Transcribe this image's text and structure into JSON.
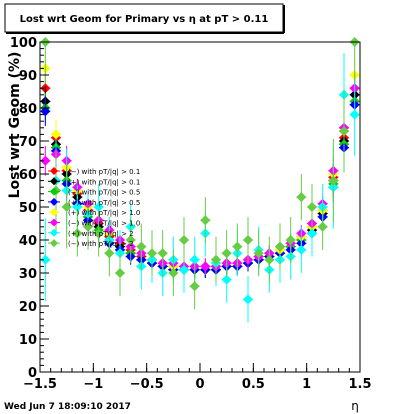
{
  "chart_data": {
    "type": "scatter",
    "title": "Lost wrt Geom for Primary vs   η at pT > 0.11",
    "xlabel": "η",
    "ylabel": "Lost wrt Geom (%)",
    "xlim": [
      -1.5,
      1.5
    ],
    "ylim": [
      0,
      100
    ],
    "x_ticks": [
      "−1.5",
      "−1",
      "−0.5",
      "0",
      "0.5",
      "1",
      "1.5"
    ],
    "y_ticks": [
      "0",
      "10",
      "20",
      "30",
      "40",
      "50",
      "60",
      "70",
      "80",
      "90",
      "100"
    ],
    "grid": false,
    "legend_position": "left-middle",
    "footer": "Wed Jun  7 18:09:10 2017",
    "series": [
      {
        "name": "(−) with pT/|q| > 0.1",
        "color": "#ff0000",
        "x": [
          -1.45,
          -1.35,
          -1.25,
          -1.15,
          -1.05,
          -0.95,
          -0.85,
          -0.75,
          -0.65,
          -0.55,
          -0.45,
          -0.35,
          -0.25,
          -0.15,
          -0.05,
          0.05,
          0.15,
          0.25,
          0.35,
          0.45,
          0.55,
          0.65,
          0.75,
          0.85,
          0.95,
          1.05,
          1.15,
          1.25,
          1.35,
          1.45
        ],
        "y": [
          86,
          71,
          61,
          54,
          49,
          45,
          41,
          39,
          37,
          35,
          34,
          33,
          32,
          32,
          32,
          32,
          32,
          33,
          33,
          34,
          35,
          36,
          37,
          39,
          41,
          44,
          49,
          59,
          71,
          86
        ]
      },
      {
        "name": "(+) with pT/|q| > 0.1",
        "color": "#000000",
        "x": [
          -1.45,
          -1.35,
          -1.25,
          -1.15,
          -1.05,
          -0.95,
          -0.85,
          -0.75,
          -0.65,
          -0.55,
          -0.45,
          -0.35,
          -0.25,
          -0.15,
          -0.05,
          0.05,
          0.15,
          0.25,
          0.35,
          0.45,
          0.55,
          0.65,
          0.75,
          0.85,
          0.95,
          1.05,
          1.15,
          1.25,
          1.35,
          1.45
        ],
        "y": [
          82,
          69,
          60,
          53,
          48,
          44,
          40,
          38,
          36,
          34,
          33,
          32,
          31,
          31,
          31,
          31,
          31,
          32,
          32,
          33,
          34,
          35,
          36,
          38,
          40,
          43,
          48,
          58,
          70,
          84
        ]
      },
      {
        "name": "(−) with pT/|q| > 0.5",
        "color": "#00cc00",
        "x": [
          -1.45,
          -1.35,
          -1.25,
          -1.15,
          -1.05,
          -0.95,
          -0.85,
          -0.75,
          -0.65,
          -0.55,
          -0.45,
          -0.35,
          -0.25,
          -0.15,
          -0.05,
          0.05,
          0.15,
          0.25,
          0.35,
          0.45,
          0.55,
          0.65,
          0.75,
          0.85,
          0.95,
          1.05,
          1.15,
          1.25,
          1.35,
          1.45
        ],
        "y": [
          80,
          68,
          58,
          51,
          47,
          43,
          40,
          37,
          36,
          34,
          33,
          32,
          31,
          31,
          31,
          31,
          31,
          32,
          32,
          33,
          34,
          35,
          36,
          38,
          40,
          42,
          47,
          57,
          69,
          82
        ]
      },
      {
        "name": "(+) with pT/|q| > 0.5",
        "color": "#0000ff",
        "x": [
          -1.45,
          -1.35,
          -1.25,
          -1.15,
          -1.05,
          -0.95,
          -0.85,
          -0.75,
          -0.65,
          -0.55,
          -0.45,
          -0.35,
          -0.25,
          -0.15,
          -0.05,
          0.05,
          0.15,
          0.25,
          0.35,
          0.45,
          0.55,
          0.65,
          0.75,
          0.85,
          0.95,
          1.05,
          1.15,
          1.25,
          1.35,
          1.45
        ],
        "y": [
          79,
          67,
          57,
          51,
          46,
          42,
          39,
          37,
          35,
          34,
          33,
          32,
          31,
          31,
          31,
          31,
          31,
          32,
          32,
          33,
          34,
          35,
          36,
          37,
          39,
          42,
          47,
          56,
          68,
          81
        ]
      },
      {
        "name": "(+) with pT/|q| > 1.0",
        "color": "#ffff00",
        "x": [
          -1.45,
          -1.35,
          -1.25,
          -1.15,
          -1.05,
          -0.95,
          -0.85,
          -0.75,
          -0.65,
          -0.55,
          -0.45,
          -0.35,
          -0.25,
          -0.15,
          -0.05,
          0.05,
          0.15,
          0.25,
          0.35,
          0.45,
          0.55,
          0.65,
          0.75,
          0.85,
          0.95,
          1.05,
          1.15,
          1.25,
          1.35,
          1.45
        ],
        "y": [
          92,
          72,
          62,
          55,
          50,
          46,
          42,
          40,
          38,
          36,
          34,
          33,
          32,
          32,
          32,
          32,
          32,
          33,
          33,
          34,
          35,
          36,
          37,
          39,
          41,
          44,
          49,
          60,
          73,
          90
        ]
      },
      {
        "name": "(−) with pT/|q| > 1.0",
        "color": "#ff00ff",
        "x": [
          -1.45,
          -1.35,
          -1.25,
          -1.15,
          -1.05,
          -0.95,
          -0.85,
          -0.75,
          -0.65,
          -0.55,
          -0.45,
          -0.35,
          -0.25,
          -0.15,
          -0.05,
          0.05,
          0.15,
          0.25,
          0.35,
          0.45,
          0.55,
          0.65,
          0.75,
          0.85,
          0.95,
          1.05,
          1.15,
          1.25,
          1.35,
          1.45
        ],
        "y": [
          64,
          66,
          64,
          56,
          51,
          46,
          43,
          40,
          38,
          36,
          34,
          33,
          33,
          32,
          32,
          32,
          32,
          33,
          33,
          34,
          35,
          36,
          38,
          39,
          42,
          45,
          51,
          61,
          74,
          86
        ]
      },
      {
        "name": "(+) with pT/|q| > 2",
        "color": "#00ffff",
        "x": [
          -1.45,
          -1.35,
          -1.25,
          -1.15,
          -1.05,
          -0.95,
          -0.85,
          -0.75,
          -0.65,
          -0.55,
          -0.45,
          -0.35,
          -0.25,
          -0.15,
          -0.05,
          0.05,
          0.15,
          0.25,
          0.35,
          0.45,
          0.55,
          0.65,
          0.75,
          0.85,
          0.95,
          1.05,
          1.15,
          1.25,
          1.35,
          1.45
        ],
        "y": [
          34,
          58,
          55,
          50,
          48,
          50,
          40,
          36,
          44,
          32,
          34,
          30,
          34,
          31,
          34,
          42,
          33,
          28,
          36,
          22,
          37,
          31,
          34,
          35,
          37,
          42,
          50,
          56,
          84,
          78
        ]
      },
      {
        "name": "(−) with pT/|q| > 2",
        "color": "#66cc44",
        "x": [
          -1.45,
          -1.35,
          -1.25,
          -1.15,
          -1.05,
          -0.95,
          -0.85,
          -0.75,
          -0.65,
          -0.55,
          -0.45,
          -0.35,
          -0.25,
          -0.15,
          -0.05,
          0.05,
          0.15,
          0.25,
          0.35,
          0.45,
          0.55,
          0.65,
          0.75,
          0.85,
          0.95,
          1.05,
          1.15,
          1.25,
          1.35,
          1.45
        ],
        "y": [
          100,
          55,
          50,
          42,
          44,
          42,
          36,
          30,
          40,
          38,
          36,
          36,
          30,
          40,
          26,
          46,
          34,
          36,
          38,
          40,
          36,
          34,
          38,
          40,
          53,
          50,
          44,
          58,
          73,
          100
        ]
      }
    ]
  }
}
